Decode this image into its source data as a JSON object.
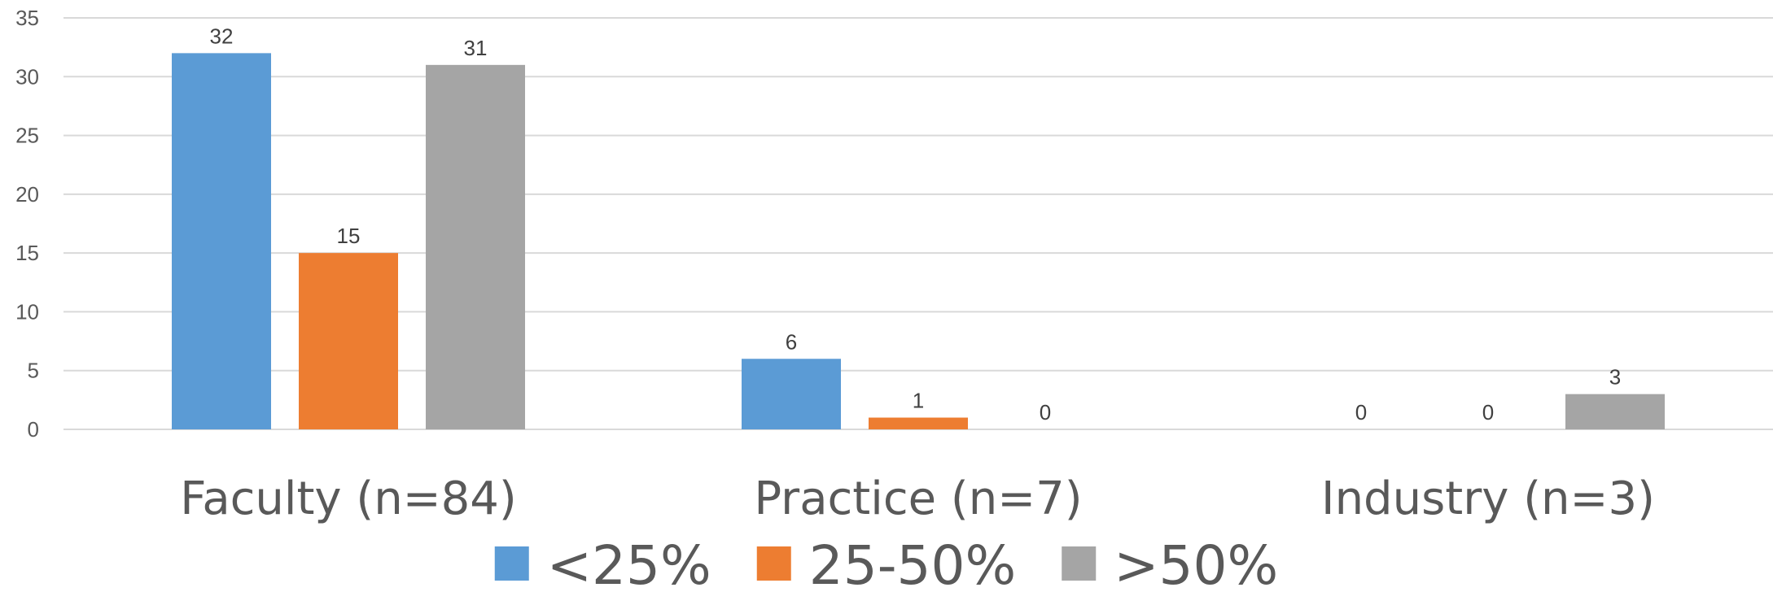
{
  "chart_data": {
    "type": "bar",
    "title": "",
    "xlabel": "",
    "ylabel": "",
    "categories": [
      "Faculty (n=84)",
      "Practice (n=7)",
      "Industry (n=3)"
    ],
    "series": [
      {
        "name": "<25%",
        "color": "#5b9bd5",
        "values": [
          32,
          6,
          0
        ]
      },
      {
        "name": "25-50%",
        "color": "#ed7d31",
        "values": [
          15,
          1,
          0
        ]
      },
      {
        "name": ">50%",
        "color": "#a5a5a5",
        "values": [
          31,
          0,
          3
        ]
      }
    ],
    "ylim": [
      0,
      35
    ],
    "yticks": [
      0,
      5,
      10,
      15,
      20,
      25,
      30,
      35
    ],
    "grid": true,
    "legend_position": "bottom",
    "data_labels": true
  }
}
